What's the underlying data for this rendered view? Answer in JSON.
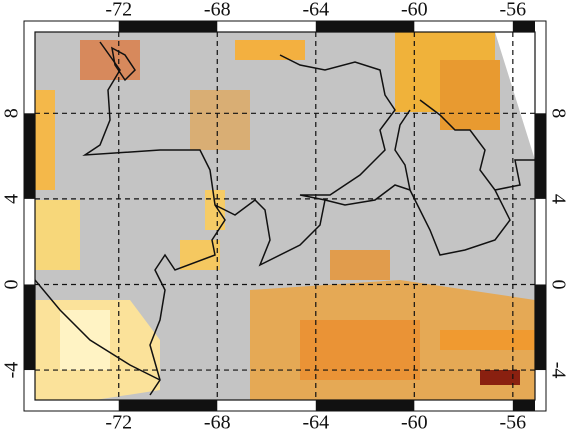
{
  "map": {
    "xlim": [
      -75.4,
      -55.1
    ],
    "ylim": [
      -5.4,
      11.8
    ],
    "xticks": [
      -72,
      -68,
      -64,
      -60,
      -56
    ],
    "yticks": [
      8,
      4,
      0,
      -4
    ]
  }
}
